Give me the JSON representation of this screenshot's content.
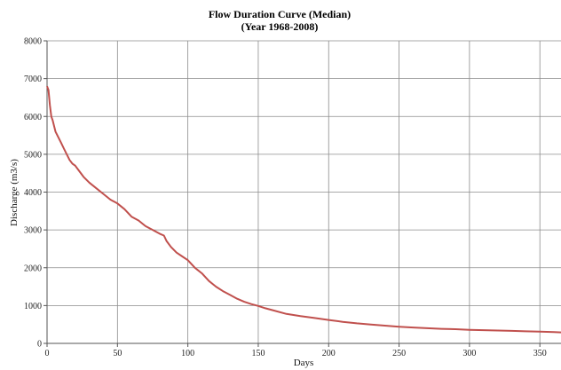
{
  "chart_data": {
    "type": "line",
    "title": "Flow Duration Curve (Median)",
    "subtitle": "(Year 1968-2008)",
    "xlabel": "Days",
    "ylabel": "Discharge (m3/s)",
    "xlim": [
      0,
      365
    ],
    "ylim": [
      0,
      8000
    ],
    "xticks": [
      0,
      50,
      100,
      150,
      200,
      250,
      300,
      350
    ],
    "yticks": [
      0,
      1000,
      2000,
      3000,
      4000,
      5000,
      6000,
      7000,
      8000
    ],
    "grid": true,
    "line_color": "#c0504d",
    "series": [
      {
        "x": [
          0,
          1,
          2,
          3,
          4,
          5,
          6,
          8,
          10,
          12,
          14,
          16,
          18,
          20,
          23,
          26,
          30,
          35,
          40,
          45,
          50,
          55,
          60,
          65,
          70,
          75,
          80,
          83,
          85,
          88,
          92,
          96,
          100,
          105,
          110,
          115,
          120,
          125,
          130,
          135,
          140,
          145,
          150,
          155,
          160,
          170,
          180,
          190,
          200,
          210,
          220,
          230,
          240,
          250,
          260,
          270,
          280,
          290,
          300,
          310,
          320,
          330,
          340,
          350,
          360,
          365
        ],
        "y": [
          6800,
          6700,
          6300,
          6000,
          5900,
          5750,
          5600,
          5450,
          5300,
          5150,
          5000,
          4850,
          4750,
          4700,
          4550,
          4400,
          4250,
          4100,
          3950,
          3800,
          3700,
          3550,
          3350,
          3250,
          3100,
          3000,
          2900,
          2850,
          2700,
          2550,
          2400,
          2300,
          2200,
          2000,
          1850,
          1650,
          1500,
          1380,
          1280,
          1180,
          1100,
          1040,
          990,
          930,
          880,
          780,
          720,
          670,
          620,
          570,
          530,
          500,
          470,
          440,
          420,
          400,
          385,
          375,
          360,
          350,
          340,
          330,
          320,
          310,
          300,
          290
        ]
      }
    ]
  }
}
